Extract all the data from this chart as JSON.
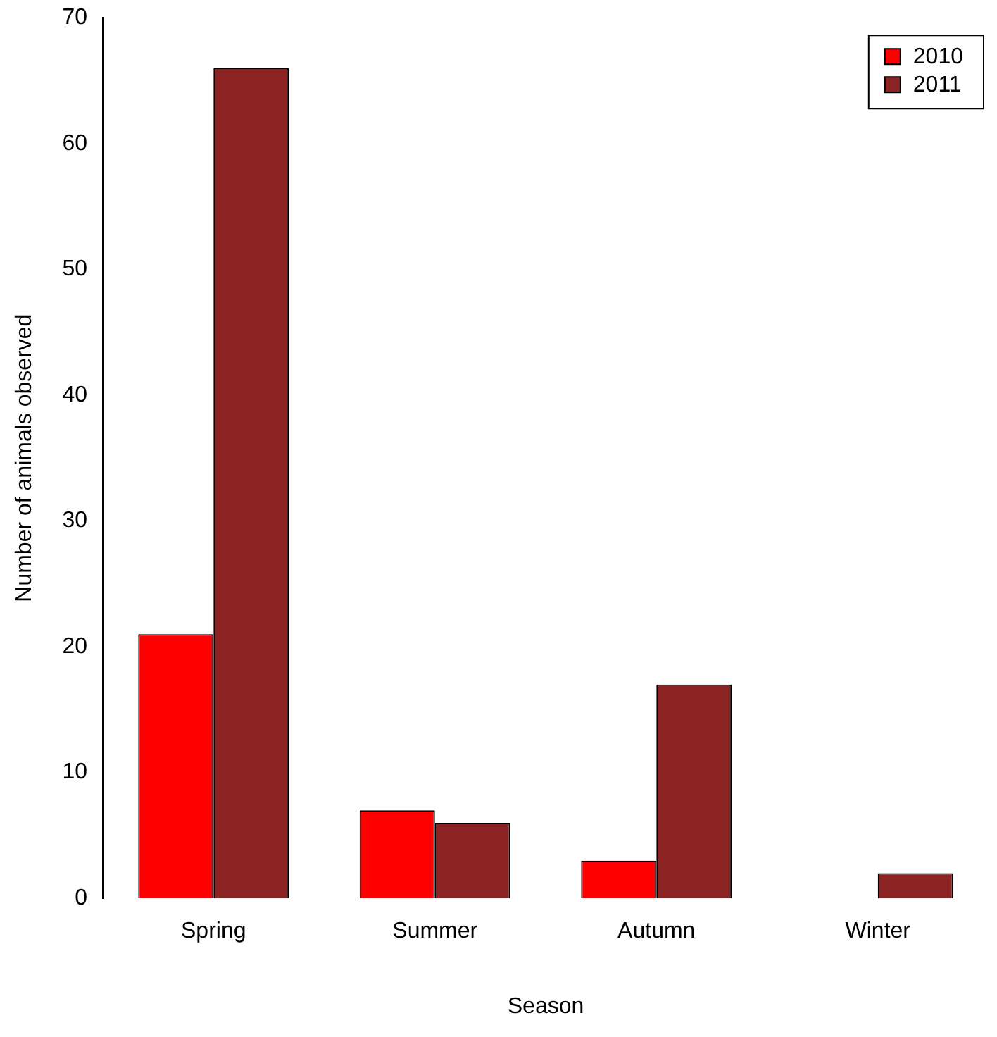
{
  "chart_data": {
    "type": "bar",
    "xlabel": "Season",
    "ylabel": "Number of animals observed",
    "categories": [
      "Spring",
      "Summer",
      "Autumn",
      "Winter"
    ],
    "series": [
      {
        "name": "2010",
        "color": "#ff0000",
        "values": [
          21,
          7,
          3,
          0
        ]
      },
      {
        "name": "2011",
        "color": "#8b2323",
        "values": [
          66,
          6,
          17,
          2
        ]
      }
    ],
    "ylim": [
      0,
      70
    ],
    "yticks": [
      0,
      10,
      20,
      30,
      40,
      50,
      60,
      70
    ],
    "grid": false,
    "legend": "top right"
  }
}
